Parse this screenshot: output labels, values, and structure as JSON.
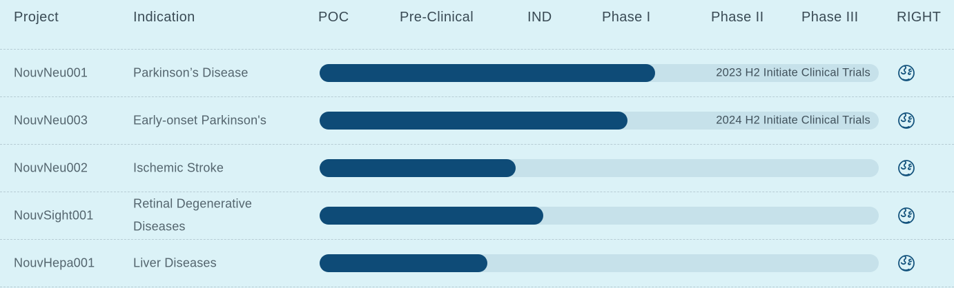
{
  "header": {
    "project": "Project",
    "indication": "Indication",
    "stages": [
      "POC",
      "Pre-Clinical",
      "IND",
      "Phase I",
      "Phase II",
      "Phase III"
    ],
    "right": "RIGHT"
  },
  "rows": [
    {
      "project": "NouvNeu001",
      "indication": "Parkinson’s Disease",
      "progress_pct": 60,
      "milestone": "2023 H2 Initiate Clinical Trials",
      "right_icon": "globe-icon"
    },
    {
      "project": "NouvNeu003",
      "indication": "Early-onset Parkinson's",
      "progress_pct": 55,
      "milestone": "2024 H2 Initiate Clinical Trials",
      "right_icon": "globe-icon"
    },
    {
      "project": "NouvNeu002",
      "indication": "Ischemic Stroke",
      "progress_pct": 35,
      "milestone": "",
      "right_icon": "globe-icon"
    },
    {
      "project": "NouvSight001",
      "indication": "Retinal Degenerative Diseases",
      "progress_pct": 40,
      "milestone": "",
      "right_icon": "globe-icon"
    },
    {
      "project": "NouvHepa001",
      "indication": "Liver Diseases",
      "progress_pct": 30,
      "milestone": "",
      "right_icon": "globe-icon"
    }
  ],
  "colors": {
    "background": "#dbf2f7",
    "track": "#c6e1ea",
    "bar": "#0e4b77",
    "globe_icon": "#14537d",
    "header_text": "#3a4b55",
    "body_text": "#54656e",
    "milestone_text": "#41525c",
    "separator": "#b6ccd4"
  },
  "chart_data": {
    "type": "bar",
    "orientation": "horizontal",
    "title": "Clinical development pipeline progress",
    "categories": [
      "NouvNeu001",
      "NouvNeu003",
      "NouvNeu002",
      "NouvSight001",
      "NouvHepa001"
    ],
    "category_indications": [
      "Parkinson’s Disease",
      "Early-onset Parkinson's",
      "Ischemic Stroke",
      "Retinal Degenerative Diseases",
      "Liver Diseases"
    ],
    "x_axis_stages": [
      "POC",
      "Pre-Clinical",
      "IND",
      "Phase I",
      "Phase II",
      "Phase III"
    ],
    "values_pct_of_full_track": [
      60,
      55,
      35,
      40,
      30
    ],
    "stage_reached": [
      "Phase I",
      "Phase I",
      "IND",
      "IND",
      "Pre-Clinical"
    ],
    "annotations": [
      "2023 H2 Initiate Clinical Trials",
      "2024 H2 Initiate Clinical Trials",
      "",
      "",
      ""
    ],
    "xlim_stage_units": [
      0,
      6
    ],
    "grid": false,
    "legend": false
  }
}
